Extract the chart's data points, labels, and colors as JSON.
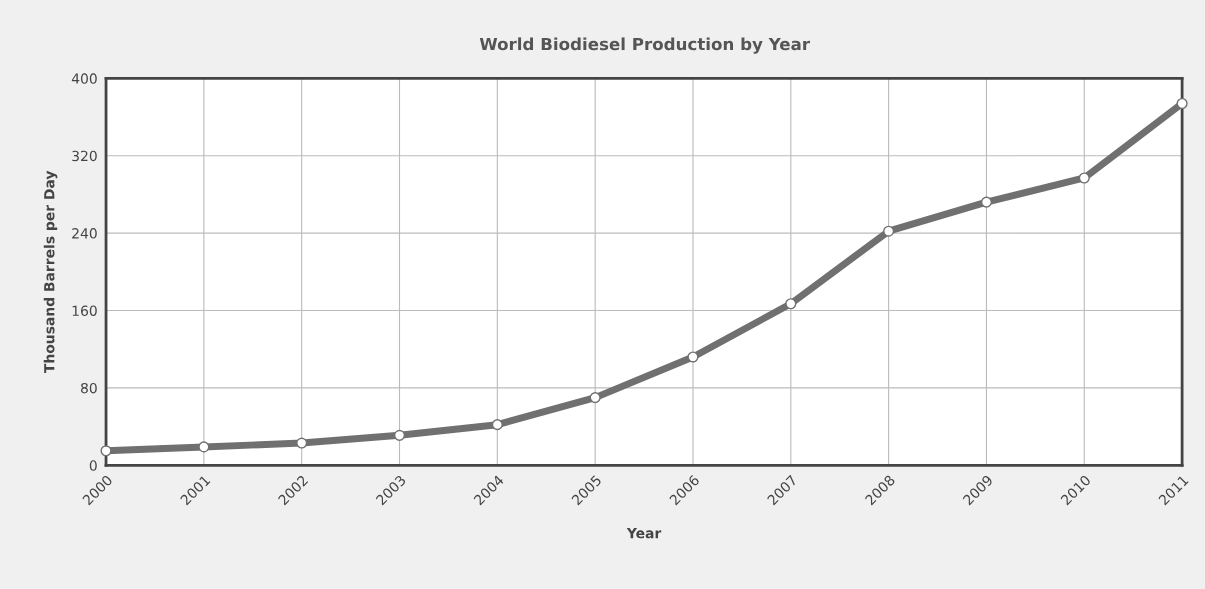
{
  "chart_data": {
    "type": "line",
    "title": "World Biodiesel Production by Year",
    "xlabel": "Year",
    "ylabel": "Thousand Barrels per Day",
    "categories": [
      "2000",
      "2001",
      "2002",
      "2003",
      "2004",
      "2005",
      "2006",
      "2007",
      "2008",
      "2009",
      "2010",
      "2011"
    ],
    "series": [
      {
        "color": "#707070",
        "values": [
          15,
          19,
          23,
          31,
          42,
          70,
          112,
          167,
          242,
          272,
          297,
          374
        ]
      }
    ],
    "ylim": [
      0,
      400
    ],
    "yticks": [
      0,
      80,
      160,
      240,
      320,
      400
    ],
    "grid": true,
    "marker": "circle",
    "line_style": "solid",
    "legend": false
  }
}
